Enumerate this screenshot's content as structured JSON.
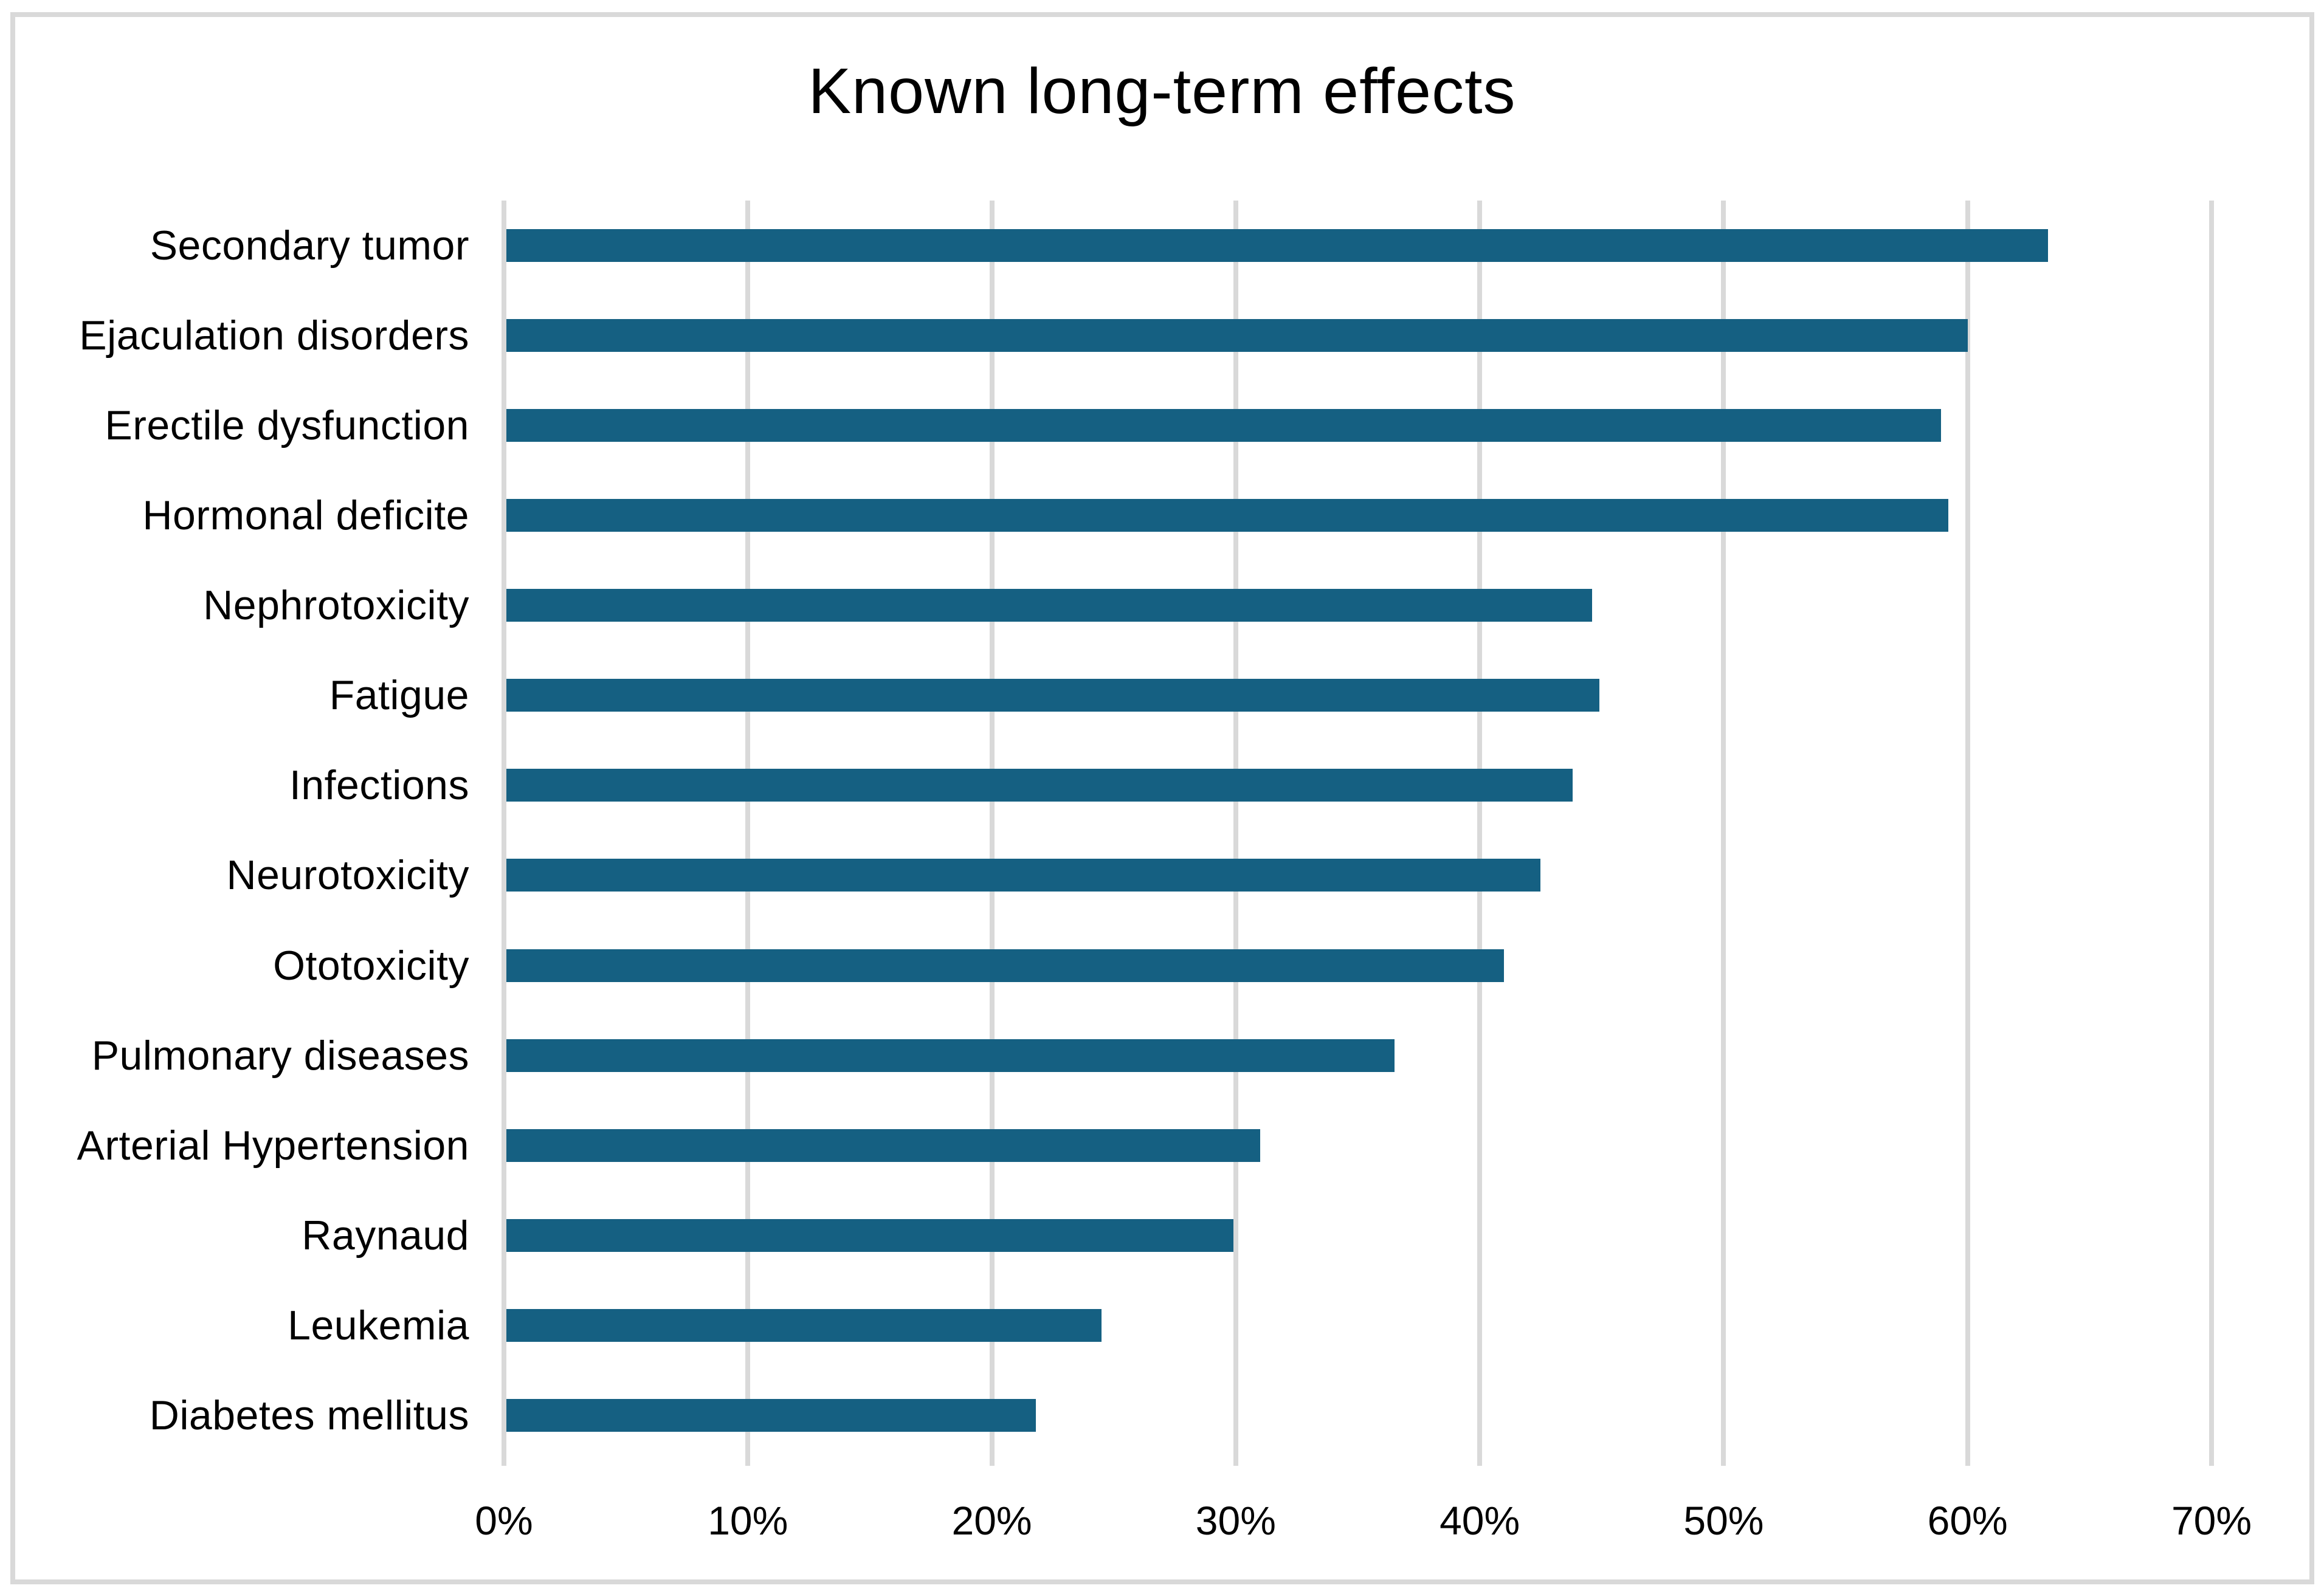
{
  "window": {
    "background_color": "#ffffff",
    "frame_border_color": "#d9d9d9"
  },
  "chart_data": {
    "type": "bar",
    "orientation": "horizontal",
    "title": "Known long-term effects",
    "categories": [
      "Secondary tumor",
      "Ejaculation disorders",
      "Erectile dysfunction",
      "Hormonal deficite",
      "Nephrotoxicity",
      "Fatigue",
      "Infections",
      "Neurotoxicity",
      "Ototoxicity",
      "Pulmonary diseases",
      "Arterial Hypertension",
      "Raynaud",
      "Leukemia",
      "Diabetes mellitus"
    ],
    "values": [
      63.3,
      60.0,
      58.9,
      59.2,
      44.6,
      44.9,
      43.8,
      42.5,
      41.0,
      36.5,
      31.0,
      29.9,
      24.5,
      21.8
    ],
    "unit": "%",
    "x_ticks": [
      "0%",
      "10%",
      "20%",
      "30%",
      "40%",
      "50%",
      "60%",
      "70%"
    ],
    "xlim": [
      0,
      70
    ],
    "xlabel": "",
    "ylabel": "",
    "grid": true,
    "legend": false,
    "bar_color": "#156082",
    "gridline_color": "#d9d9d9",
    "text_color": "#000000"
  }
}
